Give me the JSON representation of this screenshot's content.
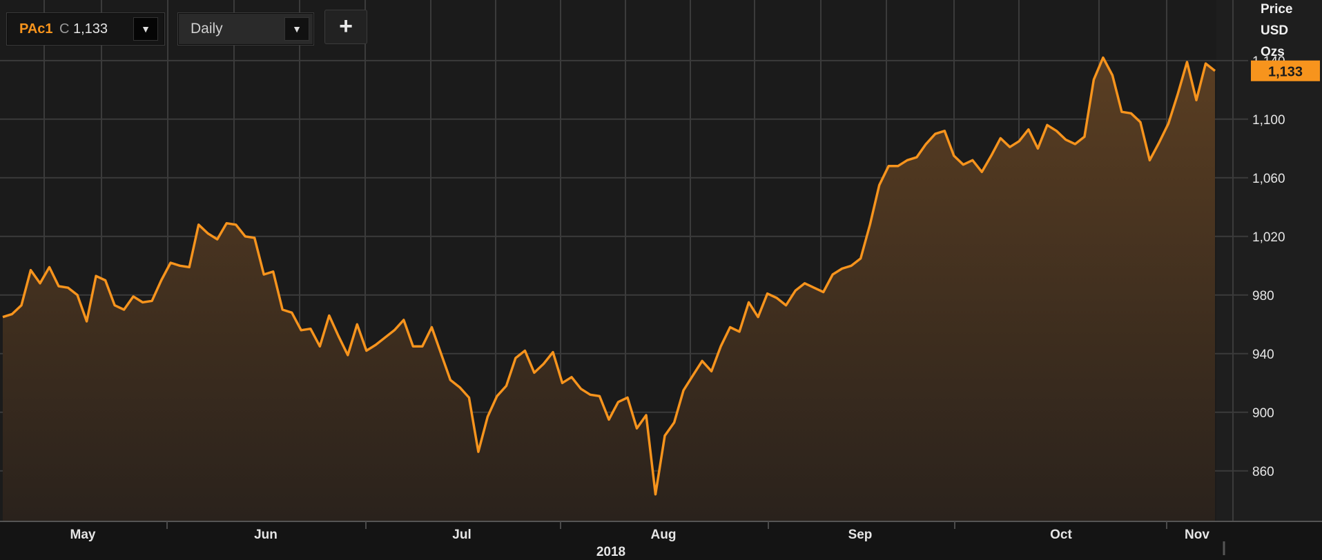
{
  "toolbar": {
    "symbol": "PAc1",
    "series_type": "C",
    "symbol_value": "1,133",
    "frequency": "Daily",
    "add_label": "+",
    "dropdown_icon": "triangle-down-icon"
  },
  "colors": {
    "background": "#1b1b1b",
    "line": "#f7941d",
    "grid": "#3b3b3b",
    "axis_text": "#e6e6e6",
    "price_tag_bg": "#f7941d",
    "price_tag_text": "#1b1b1b"
  },
  "chart_data": {
    "type": "area",
    "title": "",
    "xlabel": "2018",
    "ylabel": "Price USD Ozs",
    "y_axis_title": [
      "Price",
      "USD",
      "Ozs"
    ],
    "ylim": [
      826,
      1150
    ],
    "y_ticks": [
      860,
      900,
      940,
      980,
      1020,
      1060,
      1100,
      1140
    ],
    "y_tick_labels": [
      "860",
      "900",
      "940",
      "980",
      "1,020",
      "1,060",
      "1,100",
      "1,140"
    ],
    "x_month_labels": [
      "May",
      "Jun",
      "Jul",
      "Aug",
      "Sep",
      "Oct",
      "Nov"
    ],
    "x_year_label": "2018",
    "last_value": 1133,
    "last_value_label": "1,133",
    "grid": true,
    "series": [
      {
        "values": [
          965,
          967,
          973,
          997,
          988,
          999,
          986,
          985,
          980,
          962,
          993,
          990,
          973,
          970,
          979,
          975,
          976,
          990,
          1002,
          1000,
          999,
          1028,
          1022,
          1018,
          1029,
          1028,
          1020,
          1019,
          994,
          996,
          970,
          968,
          956,
          957,
          945,
          966,
          952,
          939,
          960,
          942,
          946,
          951,
          956,
          963,
          945,
          945,
          958,
          940,
          922,
          917,
          910,
          873,
          897,
          911,
          918,
          937,
          942,
          927,
          933,
          941,
          920,
          924,
          916,
          912,
          911,
          895,
          907,
          910,
          889,
          898,
          844,
          884,
          893,
          915,
          925,
          935,
          928,
          945,
          958,
          955,
          975,
          965,
          981,
          978,
          973,
          983,
          988,
          985,
          982,
          994,
          998,
          1000,
          1005,
          1028,
          1055,
          1068,
          1068,
          1072,
          1074,
          1083,
          1090,
          1092,
          1075,
          1069,
          1072,
          1064,
          1075,
          1087,
          1081,
          1085,
          1093,
          1080,
          1096,
          1092,
          1086,
          1083,
          1088,
          1127,
          1142,
          1130,
          1105,
          1104,
          1098,
          1072,
          1084,
          1097,
          1117,
          1139,
          1113,
          1138,
          1133
        ]
      }
    ]
  }
}
